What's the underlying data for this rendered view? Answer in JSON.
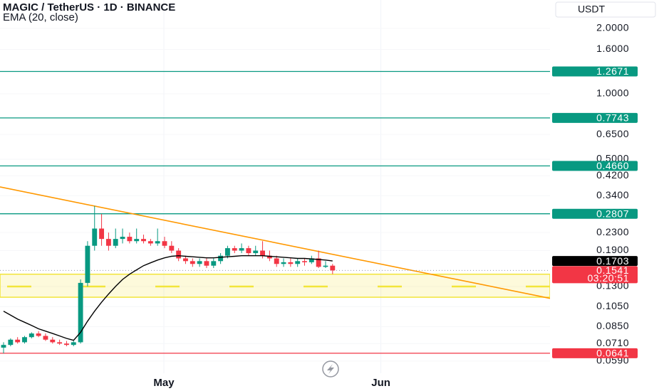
{
  "chart_data": {
    "type": "candlestick",
    "title": "MAGIC / TetherUS · 1D · BINANCE",
    "indicator": "EMA (20, close)",
    "currency": "USDT",
    "log_scale": true,
    "ylim": [
      0.04,
      2.7
    ],
    "yticks": [
      {
        "value": 2,
        "label": "2.0000"
      },
      {
        "value": 1.6,
        "label": "1.6000"
      },
      {
        "value": 1,
        "label": "1.0000"
      },
      {
        "value": 0.65,
        "label": "0.6500"
      },
      {
        "value": 0.5,
        "label": "0.5000"
      },
      {
        "value": 0.42,
        "label": "0.4200"
      },
      {
        "value": 0.34,
        "label": "0.3400"
      },
      {
        "value": 0.23,
        "label": "0.2300"
      },
      {
        "value": 0.19,
        "label": "0.1900"
      },
      {
        "value": 0.13,
        "label": "0.1300"
      },
      {
        "value": 0.105,
        "label": "0.1050"
      },
      {
        "value": 0.085,
        "label": "0.0850"
      },
      {
        "value": 0.071,
        "label": "0.0710"
      },
      {
        "value": 0.059,
        "label": "0.0590"
      }
    ],
    "xlim": [
      0.49,
      79.06
    ],
    "xticks": [
      {
        "value": 23.9,
        "label": "May"
      },
      {
        "value": 54.9,
        "label": "Jun"
      }
    ],
    "up_color": "#089981",
    "down_color": "#f23645",
    "x": [
      1,
      2,
      3,
      4,
      5,
      6,
      7,
      8,
      9,
      10,
      11,
      12,
      13,
      14,
      15,
      16,
      17,
      18,
      19,
      20,
      21,
      22,
      23,
      24,
      25,
      26,
      27,
      28,
      29,
      30,
      31,
      32,
      33,
      34,
      35,
      36,
      37,
      38,
      39,
      40,
      41,
      42,
      43,
      44,
      45,
      46,
      47,
      48
    ],
    "open": [
      0.068,
      0.07,
      0.074,
      0.072,
      0.076,
      0.079,
      0.077,
      0.074,
      0.072,
      0.071,
      0.07,
      0.072,
      0.135,
      0.2,
      0.24,
      0.215,
      0.2,
      0.215,
      0.22,
      0.21,
      0.215,
      0.21,
      0.205,
      0.21,
      0.2,
      0.19,
      0.175,
      0.17,
      0.165,
      0.17,
      0.162,
      0.17,
      0.18,
      0.195,
      0.19,
      0.195,
      0.185,
      0.19,
      0.18,
      0.175,
      0.165,
      0.168,
      0.165,
      0.17,
      0.168,
      0.175,
      0.16,
      0.162
    ],
    "high": [
      0.072,
      0.075,
      0.076,
      0.077,
      0.08,
      0.081,
      0.079,
      0.076,
      0.074,
      0.073,
      0.073,
      0.14,
      0.21,
      0.305,
      0.28,
      0.23,
      0.24,
      0.24,
      0.23,
      0.24,
      0.225,
      0.215,
      0.24,
      0.22,
      0.21,
      0.195,
      0.18,
      0.175,
      0.175,
      0.175,
      0.175,
      0.185,
      0.2,
      0.2,
      0.205,
      0.2,
      0.2,
      0.21,
      0.19,
      0.18,
      0.175,
      0.175,
      0.175,
      0.175,
      0.18,
      0.19,
      0.17,
      0.165
    ],
    "low": [
      0.064,
      0.069,
      0.071,
      0.071,
      0.075,
      0.076,
      0.073,
      0.071,
      0.07,
      0.069,
      0.069,
      0.071,
      0.13,
      0.19,
      0.2,
      0.19,
      0.195,
      0.205,
      0.205,
      0.205,
      0.205,
      0.2,
      0.2,
      0.195,
      0.185,
      0.17,
      0.165,
      0.16,
      0.16,
      0.158,
      0.158,
      0.165,
      0.175,
      0.185,
      0.185,
      0.18,
      0.18,
      0.175,
      0.17,
      0.16,
      0.16,
      0.16,
      0.16,
      0.162,
      0.165,
      0.158,
      0.158,
      0.148
    ],
    "close": [
      0.07,
      0.074,
      0.072,
      0.076,
      0.079,
      0.077,
      0.074,
      0.072,
      0.071,
      0.07,
      0.072,
      0.135,
      0.2,
      0.24,
      0.215,
      0.2,
      0.215,
      0.22,
      0.21,
      0.215,
      0.21,
      0.205,
      0.21,
      0.2,
      0.19,
      0.175,
      0.17,
      0.165,
      0.17,
      0.162,
      0.17,
      0.18,
      0.195,
      0.19,
      0.195,
      0.185,
      0.19,
      0.18,
      0.175,
      0.165,
      0.168,
      0.165,
      0.17,
      0.168,
      0.175,
      0.16,
      0.162,
      0.1541
    ],
    "ema": {
      "color": "#000000",
      "values": [
        0.1,
        0.096,
        0.092,
        0.089,
        0.086,
        0.083,
        0.081,
        0.079,
        0.077,
        0.075,
        0.0735,
        0.08,
        0.09,
        0.1,
        0.11,
        0.12,
        0.13,
        0.14,
        0.148,
        0.155,
        0.162,
        0.167,
        0.172,
        0.176,
        0.179,
        0.18,
        0.179,
        0.178,
        0.177,
        0.176,
        0.176,
        0.177,
        0.178,
        0.179,
        0.18,
        0.18,
        0.18,
        0.18,
        0.179,
        0.178,
        0.177,
        0.176,
        0.175,
        0.175,
        0.174,
        0.173,
        0.172,
        0.1703
      ]
    },
    "ema_tag": {
      "value": 0.1703,
      "color": "#000000"
    },
    "levels": [
      {
        "value": 1.2671,
        "color": "#089981"
      },
      {
        "value": 0.7743,
        "color": "#089981"
      },
      {
        "value": {
          "value": 0.466,
          "label": "0.4660"
        },
        "color": "#089981"
      },
      {
        "value": 0.2807,
        "color": "#089981"
      },
      {
        "value": 0.0641,
        "color": "#f23645"
      }
    ],
    "trendline": {
      "color": "#ff9800",
      "x": [
        0.49,
        79.06
      ],
      "y": [
        0.373,
        0.1146
      ]
    },
    "zone": {
      "low": 0.116,
      "high": 0.148,
      "mid": 0.13,
      "color": "#f2e53a"
    },
    "last_price": {
      "value": 0.1541,
      "countdown": "03:20:51",
      "color": "#f23645"
    }
  }
}
